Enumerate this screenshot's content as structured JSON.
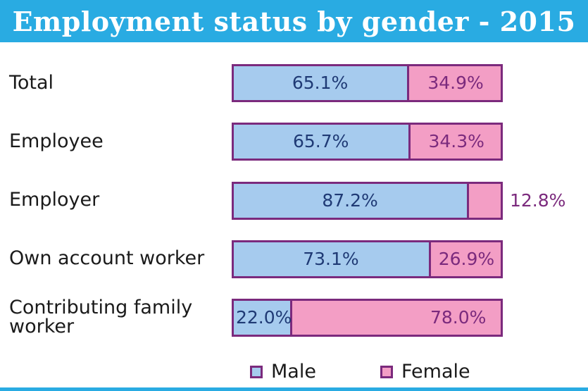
{
  "chart_data": {
    "type": "bar",
    "orientation": "horizontal",
    "stacked": true,
    "normalized": true,
    "title": "Employment status by gender - 2015",
    "categories": [
      "Total",
      "Employee",
      "Employer",
      "Own account worker",
      "Contributing family worker"
    ],
    "series": [
      {
        "name": "Male",
        "values": [
          65.1,
          65.7,
          87.2,
          73.1,
          22.0
        ],
        "labels": [
          "65.1%",
          "65.7%",
          "87.2%",
          "73.1%",
          "22.0%"
        ],
        "color": "#a6cbee"
      },
      {
        "name": "Female",
        "values": [
          34.9,
          34.3,
          12.8,
          26.9,
          78.0
        ],
        "labels": [
          "34.9%",
          "34.3%",
          "12.8%",
          "26.9%",
          "78.0%"
        ],
        "color": "#f39ec5"
      }
    ],
    "xlim": [
      0,
      100
    ],
    "grid": false,
    "legend": "bottom-center"
  },
  "colors": {
    "header": "#29abe2",
    "male": "#a6cbee",
    "female": "#f39ec5",
    "border": "#7b2a7d",
    "male_text": "#1f3a75",
    "female_text": "#7b2a7d"
  }
}
